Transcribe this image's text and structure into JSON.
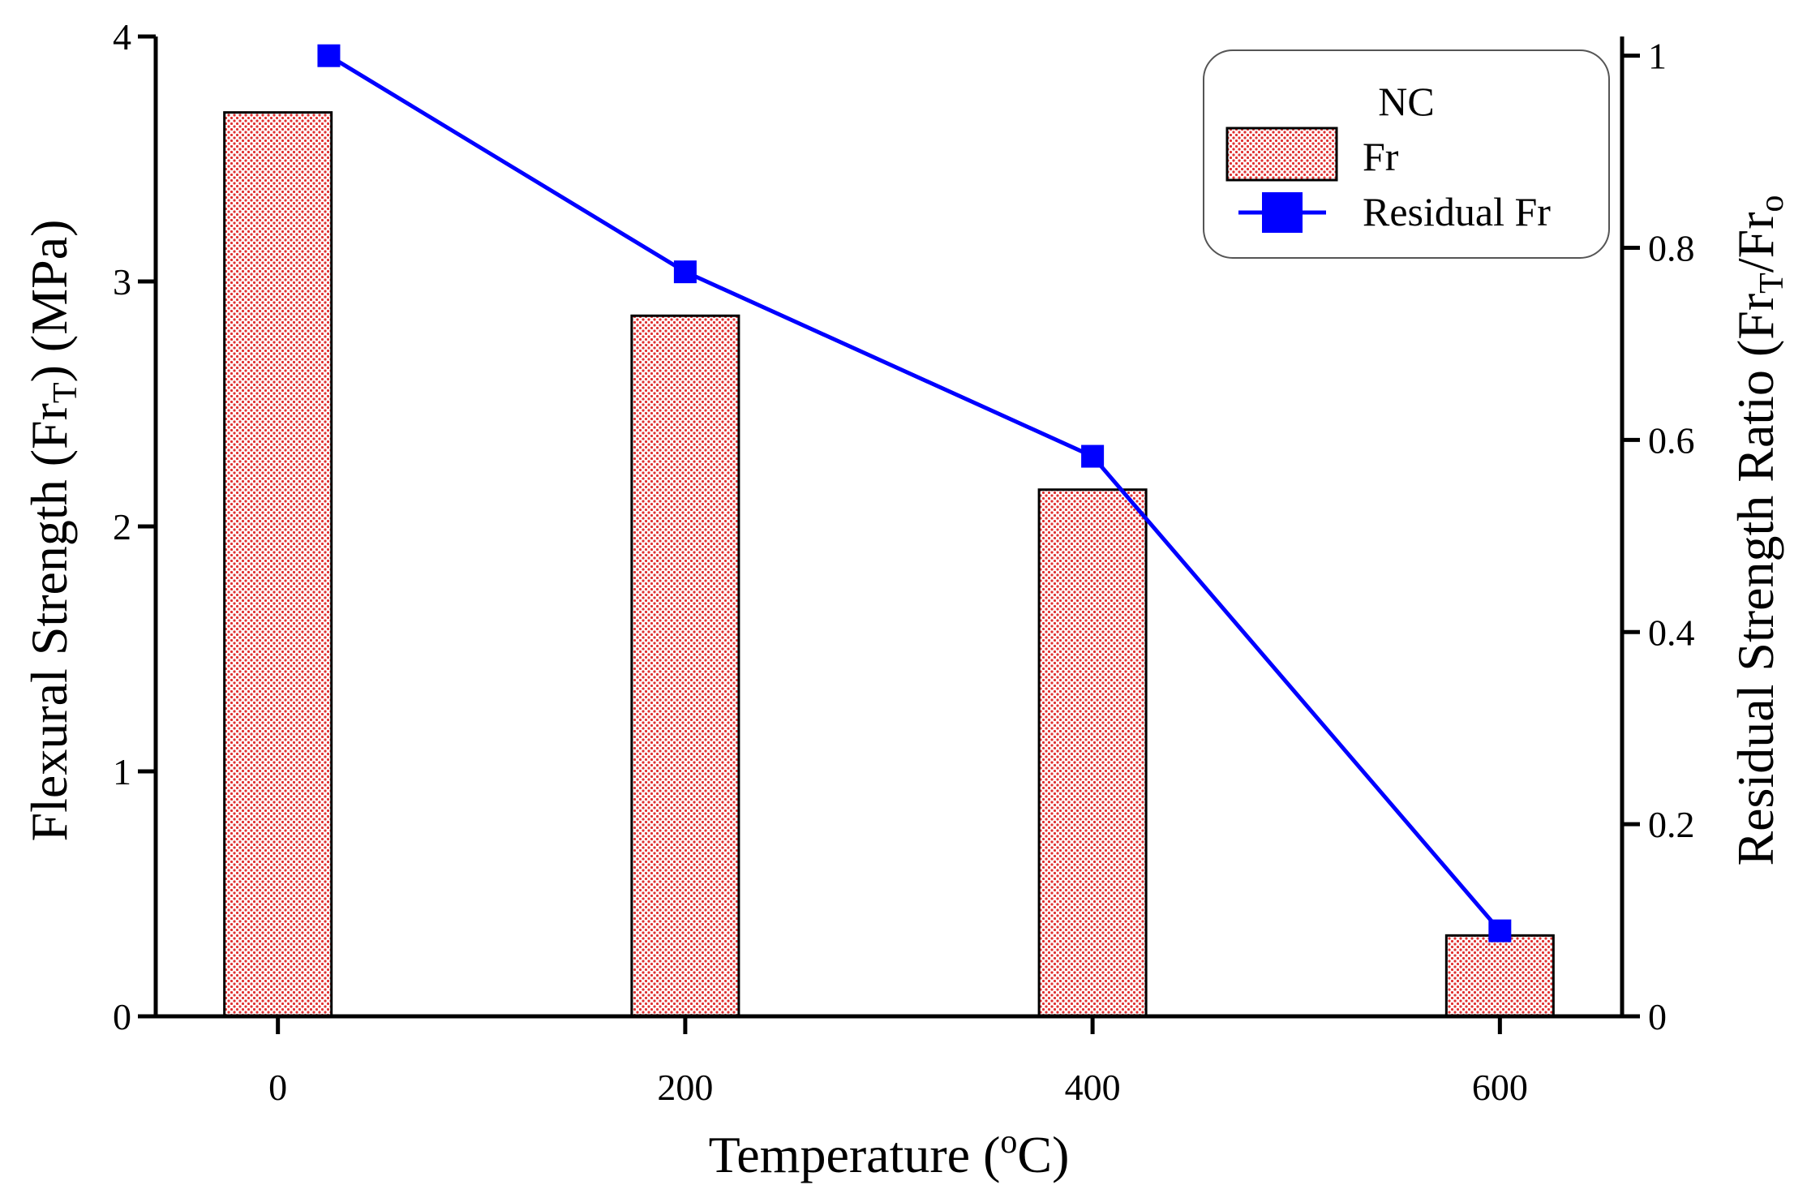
{
  "chart_data": {
    "type": "bar",
    "x": [
      0,
      200,
      400,
      600
    ],
    "xlim": [
      -60,
      660
    ],
    "xticks": [
      0,
      200,
      400,
      600
    ],
    "xlabel": {
      "main": "Temperature (",
      "sup": "o",
      "tail": "C)"
    },
    "ylabel_left": {
      "main": "Flexural Strength (Fr",
      "sub": "T",
      "tail": ") (MPa)"
    },
    "ylabel_right": {
      "main": "Residual Strength Ratio (Fr",
      "sub1": "T",
      "mid": "/Fr",
      "sub2": "o"
    },
    "ylim_left": [
      0,
      4
    ],
    "yticks_left": [
      0,
      1,
      2,
      3,
      4
    ],
    "ylim_right": [
      0,
      1.02
    ],
    "yticks_right": [
      0,
      0.2,
      0.4,
      0.6,
      0.8,
      1
    ],
    "series": [
      {
        "name": "Fr",
        "kind": "bar",
        "axis": "left",
        "x": [
          0,
          200,
          400,
          600
        ],
        "values": [
          3.69,
          2.86,
          2.15,
          0.33
        ],
        "color": "#e03030"
      },
      {
        "name": "Residual Fr",
        "kind": "line",
        "axis": "right",
        "x": [
          25,
          200,
          400,
          600
        ],
        "values": [
          1.0,
          0.775,
          0.583,
          0.089
        ],
        "color": "#0000ff"
      }
    ],
    "legend": {
      "title": "NC",
      "placement": "top-right"
    },
    "grid": false
  }
}
